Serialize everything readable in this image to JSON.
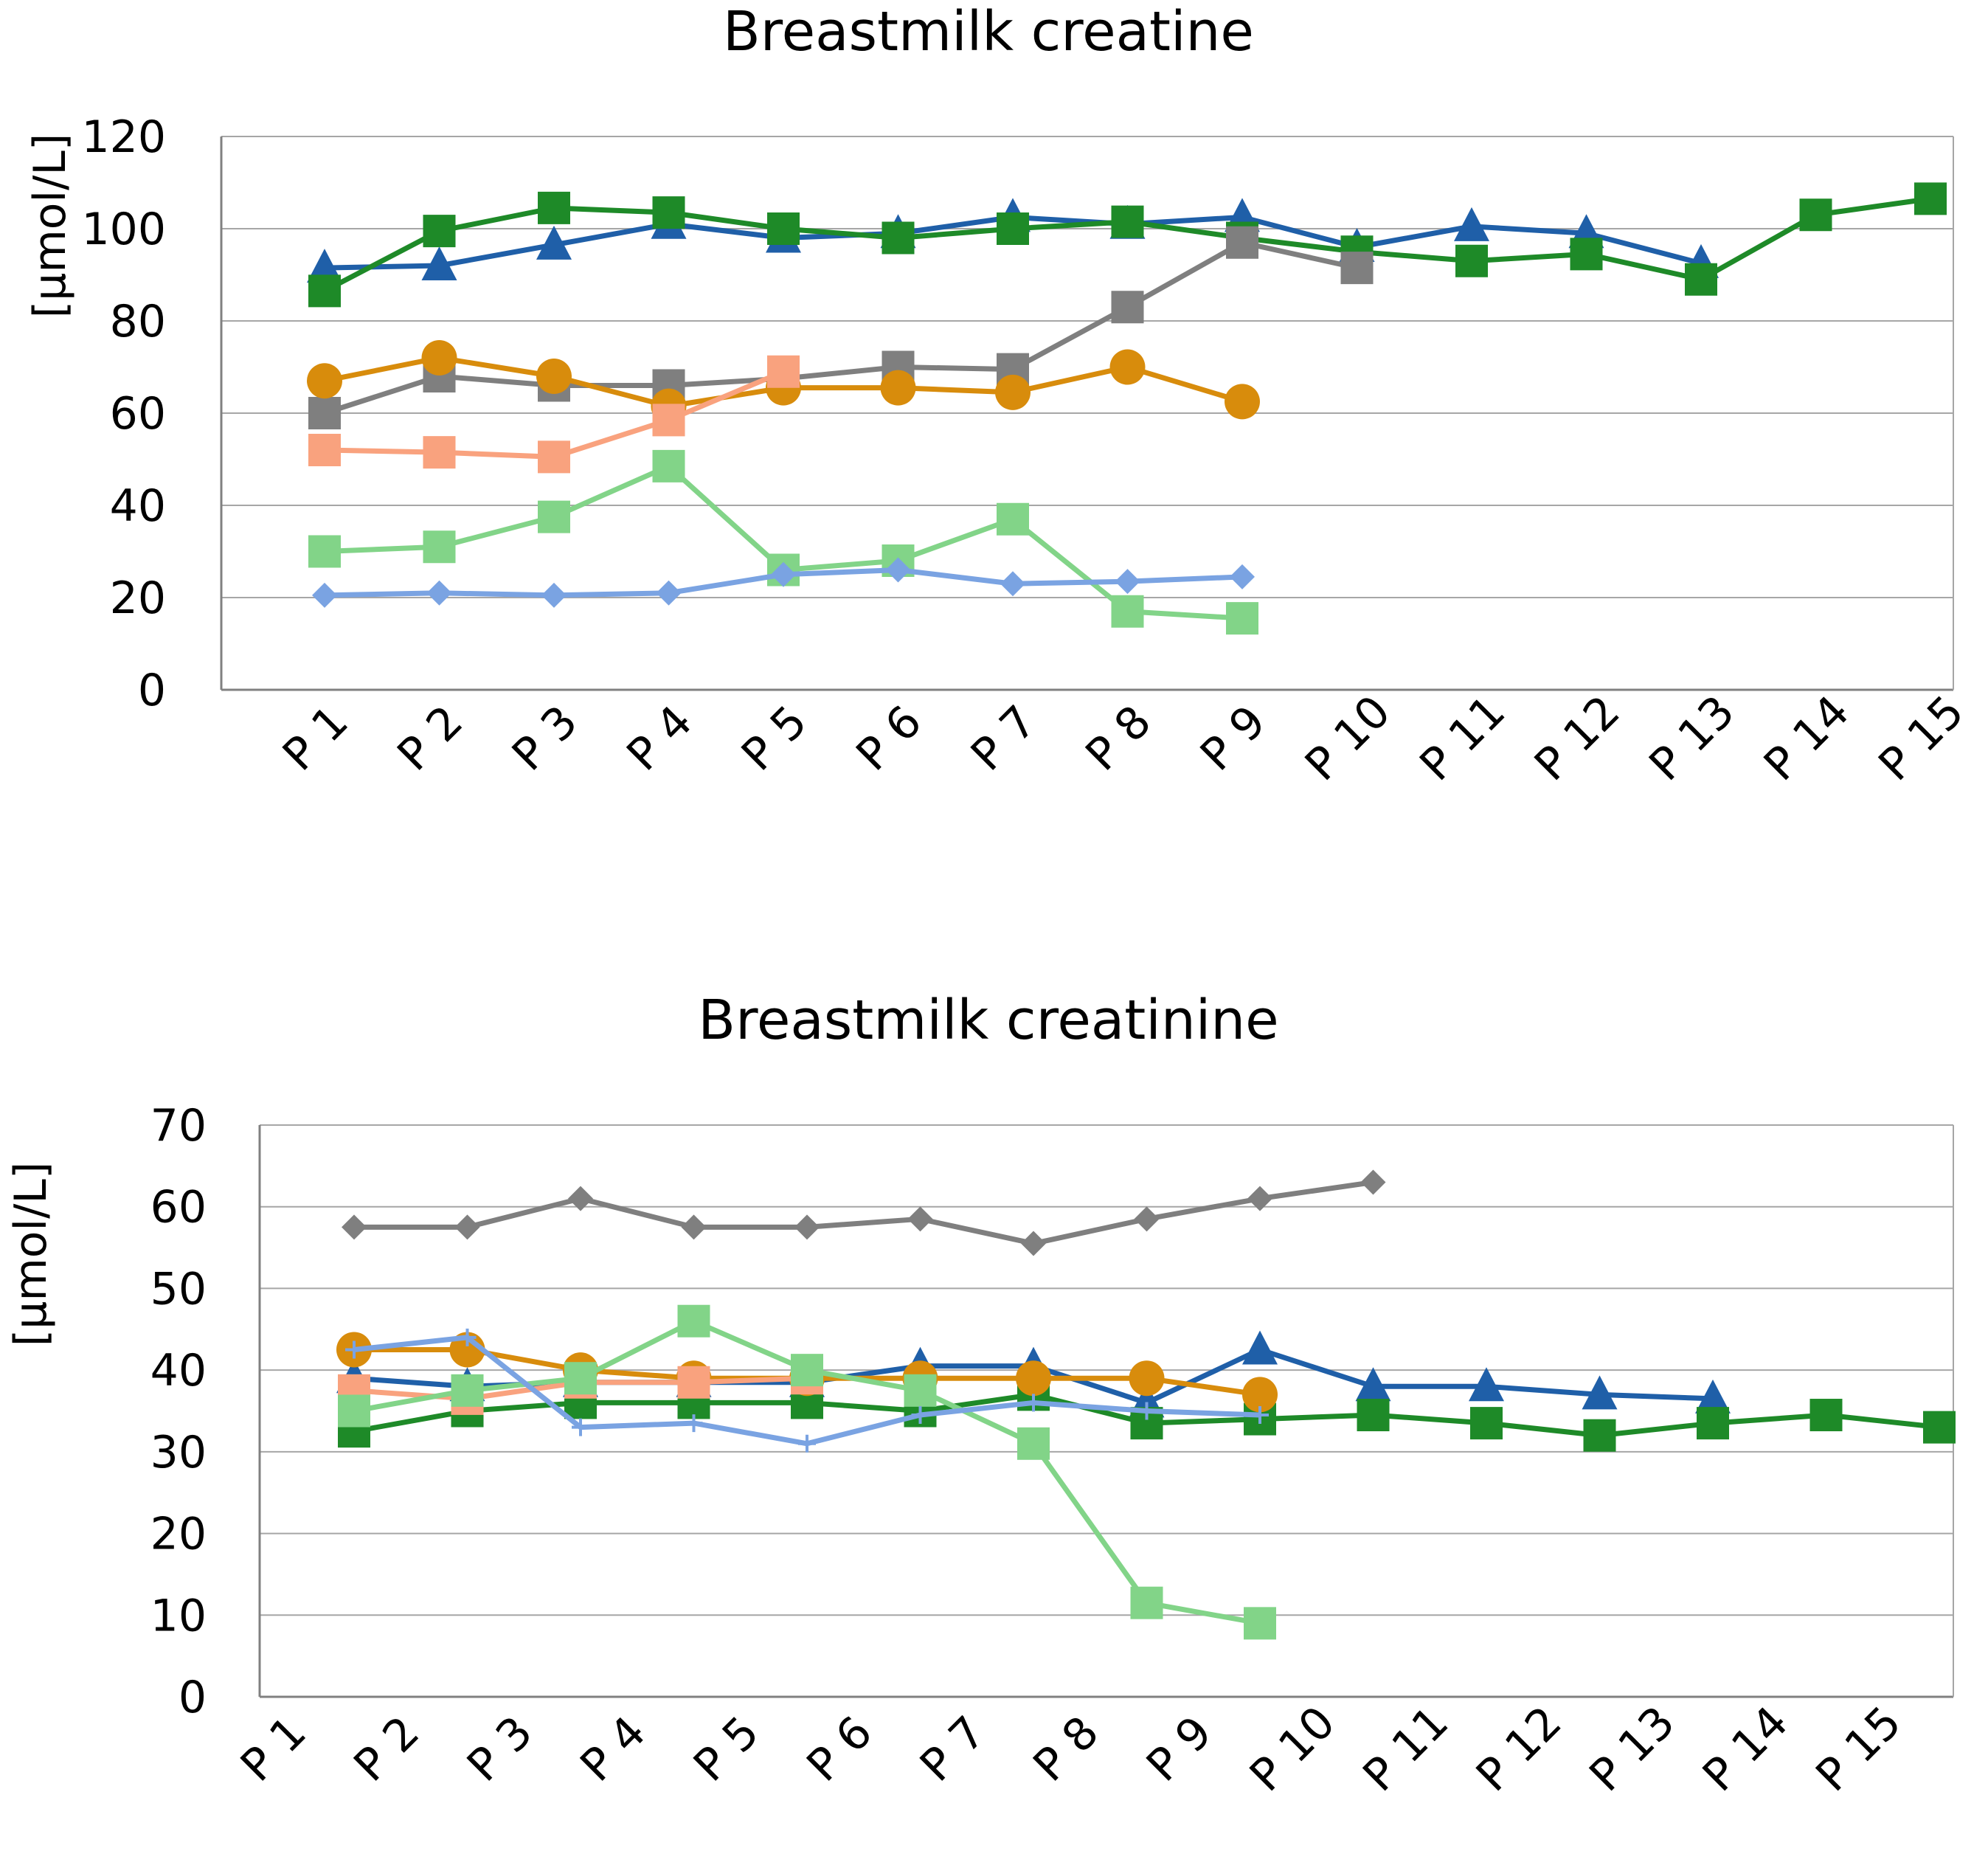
{
  "chart_data": [
    {
      "type": "line",
      "title": "Breastmilk creatine",
      "ylabel": "[µmol/L]",
      "xlabel": "",
      "ylim": [
        0,
        120
      ],
      "yticks": [
        0,
        20,
        40,
        60,
        80,
        100,
        120
      ],
      "grid": true,
      "legend": "none",
      "categories": [
        "P 1",
        "P 2",
        "P 3",
        "P 4",
        "P 5",
        "P 6",
        "P 7",
        "P 8",
        "P 9",
        "P 10",
        "P 11",
        "P 12",
        "P 13",
        "P 14",
        "P 15"
      ],
      "series": [
        {
          "name": "dark blue triangles",
          "color": "#1f5fa8",
          "marker": "triangle",
          "values": [
            91.5,
            92,
            96.5,
            101,
            98,
            99,
            102.5,
            101,
            102.5,
            96,
            100.5,
            99,
            92.5,
            null,
            null
          ]
        },
        {
          "name": "dark green squares",
          "color": "#1e8a28",
          "marker": "square",
          "values": [
            86.5,
            99.5,
            104.5,
            103.5,
            100,
            98,
            100,
            101.5,
            98,
            95,
            93,
            94.5,
            89,
            103,
            106.5
          ]
        },
        {
          "name": "grey squares",
          "color": "#7f7f7f",
          "marker": "square",
          "values": [
            60,
            68,
            66,
            66,
            67.5,
            70,
            69.5,
            83,
            97,
            91.5,
            null,
            null,
            null,
            null,
            null
          ]
        },
        {
          "name": "orange circles",
          "color": "#d88c0c",
          "marker": "circle",
          "values": [
            67,
            72,
            68,
            61.5,
            65.5,
            65.5,
            64.5,
            70,
            62.5,
            null,
            null,
            null,
            null,
            null,
            null
          ]
        },
        {
          "name": "salmon squares",
          "color": "#f9a27e",
          "marker": "square",
          "values": [
            52,
            51.5,
            50.5,
            58.5,
            69,
            null,
            null,
            null,
            null,
            null,
            null,
            null,
            null,
            null,
            null
          ]
        },
        {
          "name": "light green squares",
          "color": "#82d488",
          "marker": "square",
          "values": [
            30,
            31,
            37.5,
            48.5,
            26,
            28,
            37,
            17,
            15.5,
            null,
            null,
            null,
            null,
            null,
            null
          ]
        },
        {
          "name": "light blue diamonds",
          "color": "#7aa3e2",
          "marker": "diamond",
          "values": [
            20.5,
            21,
            20.5,
            21,
            25,
            26,
            23,
            23.5,
            24.5,
            null,
            null,
            null,
            null,
            null,
            null
          ]
        }
      ]
    },
    {
      "type": "line",
      "title": "Breastmilk creatinine",
      "ylabel": "[µmol/L]",
      "xlabel": "",
      "ylim": [
        0,
        70
      ],
      "yticks": [
        0,
        10,
        20,
        30,
        40,
        50,
        60,
        70
      ],
      "grid": true,
      "legend": "none",
      "categories": [
        "P 1",
        "P 2",
        "P 3",
        "P 4",
        "P 5",
        "P 6",
        "P 7",
        "P 8",
        "P 9",
        "P 10",
        "P 11",
        "P 12",
        "P 13",
        "P 14",
        "P 15"
      ],
      "series": [
        {
          "name": "grey diamonds",
          "color": "#7f7f7f",
          "marker": "diamond",
          "values": [
            57.5,
            57.5,
            61,
            57.5,
            57.5,
            58.5,
            55.5,
            58.5,
            61,
            63,
            null,
            null,
            null,
            null,
            null
          ]
        },
        {
          "name": "dark blue triangles",
          "color": "#1f5fa8",
          "marker": "triangle",
          "values": [
            39,
            38,
            38.5,
            38.5,
            38.5,
            40.5,
            40.5,
            36,
            42.5,
            38,
            38,
            37,
            36.5,
            null,
            null
          ]
        },
        {
          "name": "dark green squares",
          "color": "#1e8a28",
          "marker": "square",
          "values": [
            32.5,
            35,
            36,
            36,
            36,
            35,
            37,
            33.5,
            34,
            34.5,
            33.5,
            32,
            33.5,
            34.5,
            33
          ]
        },
        {
          "name": "orange circles",
          "color": "#d88c0c",
          "marker": "circle",
          "values": [
            42.5,
            42.5,
            40,
            39,
            39,
            39,
            39,
            39,
            37,
            null,
            null,
            null,
            null,
            null,
            null
          ]
        },
        {
          "name": "salmon squares",
          "color": "#f9a27e",
          "marker": "square",
          "values": [
            37.5,
            36.5,
            38.5,
            38.5,
            39,
            null,
            null,
            null,
            null,
            null,
            null,
            null,
            null,
            null,
            null
          ]
        },
        {
          "name": "light green squares",
          "color": "#82d488",
          "marker": "square",
          "values": [
            35,
            37.5,
            39,
            46,
            40,
            37.5,
            31,
            11.5,
            9,
            null,
            null,
            null,
            null,
            null,
            null
          ]
        },
        {
          "name": "light blue lines",
          "color": "#7aa3e2",
          "marker": "plus",
          "values": [
            42.5,
            44,
            33,
            33.5,
            31,
            34.5,
            36,
            35,
            34.5,
            null,
            null,
            null,
            null,
            null,
            null
          ]
        }
      ]
    }
  ]
}
